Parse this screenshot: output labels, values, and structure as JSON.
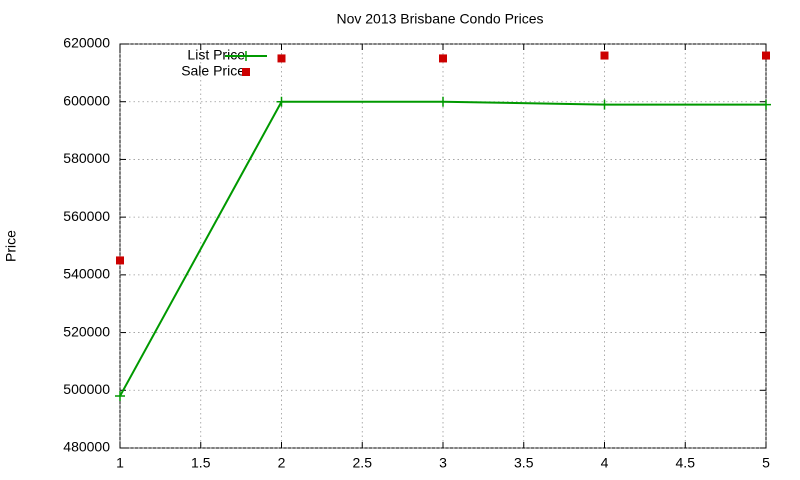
{
  "chart_data": {
    "type": "line",
    "title": "Nov 2013 Brisbane Condo Prices",
    "y_label": "Price",
    "x": [
      1,
      2,
      3,
      4,
      5
    ],
    "series": [
      {
        "name": "List Price",
        "color": "#009900",
        "mode": "lines+points",
        "values": [
          498000,
          600000,
          600000,
          599000,
          599000
        ]
      },
      {
        "name": "Sale Price",
        "color": "#cc0000",
        "mode": "points",
        "values": [
          545000,
          615000,
          615000,
          616000,
          616000
        ]
      }
    ],
    "xlim": [
      1,
      5
    ],
    "xticks": [
      1,
      1.5,
      2,
      2.5,
      3,
      3.5,
      4,
      4.5,
      5
    ],
    "ylim": [
      480000,
      620000
    ],
    "yticks": [
      480000,
      500000,
      520000,
      540000,
      560000,
      580000,
      600000,
      620000
    ],
    "grid": true,
    "legend": "top-left"
  }
}
